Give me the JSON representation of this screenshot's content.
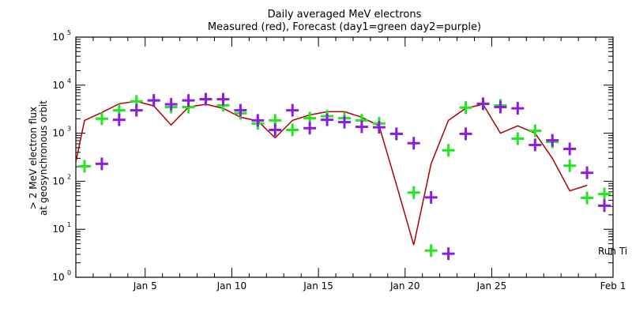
{
  "chart_data": {
    "type": "line",
    "title": "Daily averaged MeV electrons",
    "subtitle": "Measured (red), Forecast (day1=green day2=purple)",
    "xlabel": "",
    "ylabel": "> 2 MeV electron flux",
    "ylabel2": "at geosynchronous orbit",
    "yscale": "log",
    "ylim": [
      1,
      100000
    ],
    "xlim_days": [
      1,
      32
    ],
    "grid": false,
    "x_tick_labels": [
      {
        "day": 5,
        "label": "Jan 5"
      },
      {
        "day": 10,
        "label": "Jan 10"
      },
      {
        "day": 15,
        "label": "Jan 15"
      },
      {
        "day": 20,
        "label": "Jan 20"
      },
      {
        "day": 25,
        "label": "Jan 25"
      },
      {
        "day": 32,
        "label": "Feb 1"
      }
    ],
    "y_tick_labels": [
      {
        "value": 1,
        "base": "10",
        "exp": "0"
      },
      {
        "value": 10,
        "base": "10",
        "exp": "1"
      },
      {
        "value": 100,
        "base": "10",
        "exp": "2"
      },
      {
        "value": 1000,
        "base": "10",
        "exp": "3"
      },
      {
        "value": 10000,
        "base": "10",
        "exp": "4"
      },
      {
        "value": 100000,
        "base": "10",
        "exp": "5"
      }
    ],
    "annotation": "Run Ti",
    "series": [
      {
        "name": "Measured",
        "style": "line",
        "color": "#b00000",
        "x": [
          1.0,
          1.5,
          2.5,
          3.5,
          4.5,
          5.5,
          6.5,
          7.5,
          8.5,
          9.5,
          10.5,
          11.5,
          12.5,
          13.5,
          14.5,
          15.5,
          16.5,
          17.5,
          18.5,
          19.5,
          20.5,
          21.5,
          22.5,
          23.5,
          24.5,
          25.5,
          26.5,
          27.5,
          28.5,
          29.5,
          30.5
        ],
        "values": [
          250,
          1850,
          2700,
          4100,
          4600,
          3700,
          1480,
          3500,
          4000,
          3300,
          2150,
          1800,
          800,
          1850,
          2400,
          2800,
          2800,
          2150,
          1420,
          85,
          4.7,
          230,
          1850,
          3300,
          4000,
          1000,
          1420,
          1000,
          300,
          63,
          82
        ]
      },
      {
        "name": "Forecast day1",
        "style": "cross",
        "color": "#22e622",
        "x": [
          1.5,
          2.5,
          3.5,
          4.5,
          5.5,
          6.5,
          7.5,
          8.5,
          9.5,
          10.5,
          11.5,
          12.5,
          13.5,
          14.5,
          15.5,
          16.5,
          17.5,
          18.5,
          19.5,
          20.5,
          21.5,
          22.5,
          23.5,
          24.5,
          25.5,
          26.5,
          27.5,
          28.5,
          29.5,
          30.5,
          31.5
        ],
        "values": [
          205,
          2000,
          3000,
          4600,
          4800,
          3500,
          3500,
          5100,
          3800,
          2600,
          1600,
          1850,
          1170,
          2050,
          2250,
          2050,
          1850,
          1600,
          970,
          58,
          3.6,
          440,
          3400,
          4100,
          3800,
          770,
          1120,
          660,
          210,
          45,
          54
        ]
      },
      {
        "name": "Forecast day2",
        "style": "cross",
        "color": "#8a1ee0",
        "x": [
          2.5,
          3.5,
          4.5,
          5.5,
          6.5,
          7.5,
          8.5,
          9.5,
          10.5,
          11.5,
          12.5,
          13.5,
          14.5,
          15.5,
          16.5,
          17.5,
          18.5,
          19.5,
          20.5,
          21.5,
          22.5,
          23.5,
          24.5,
          25.5,
          26.5,
          27.5,
          28.5,
          29.5,
          30.5,
          31.5
        ],
        "values": [
          230,
          1900,
          3000,
          4800,
          4000,
          4800,
          5100,
          5100,
          3000,
          1850,
          1170,
          3000,
          1270,
          1900,
          1700,
          1360,
          1330,
          970,
          620,
          46,
          3.1,
          970,
          4100,
          3500,
          3300,
          570,
          710,
          470,
          150,
          31
        ]
      }
    ]
  }
}
